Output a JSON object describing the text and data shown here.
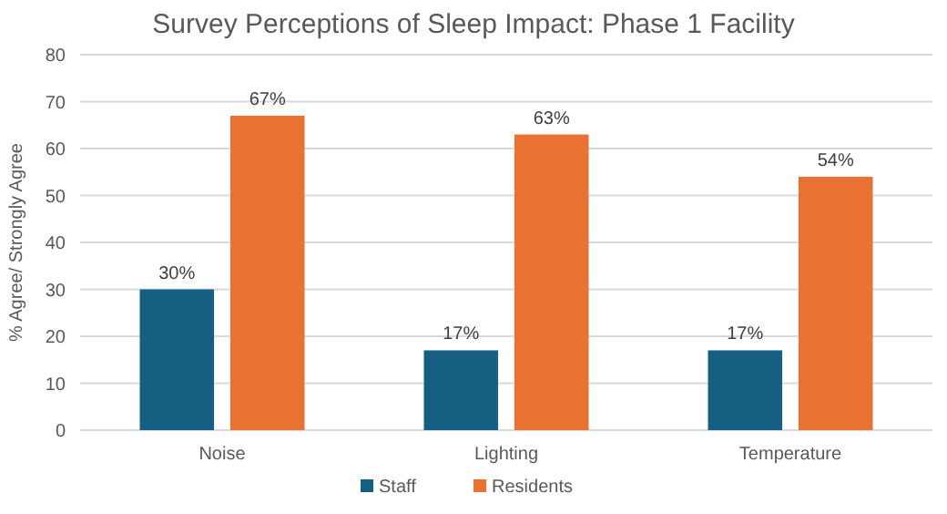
{
  "chart_data": {
    "type": "bar",
    "title": "Survey Perceptions of Sleep Impact: Phase 1 Facility",
    "ylabel": "% Agree/ Strongly Agree",
    "categories": [
      "Noise",
      "Lighting",
      "Temperature"
    ],
    "series": [
      {
        "name": "Staff",
        "color": "#156082",
        "values": [
          30,
          17,
          17
        ],
        "value_labels": [
          "30%",
          "17%",
          "17%"
        ]
      },
      {
        "name": "Residents",
        "color": "#e97132",
        "values": [
          67,
          63,
          54
        ],
        "value_labels": [
          "67%",
          "63%",
          "54%"
        ]
      }
    ],
    "ylim": [
      0,
      80
    ],
    "yticks": [
      0,
      10,
      20,
      30,
      40,
      50,
      60,
      70,
      80
    ],
    "grid": "y",
    "legend": "bottom"
  }
}
